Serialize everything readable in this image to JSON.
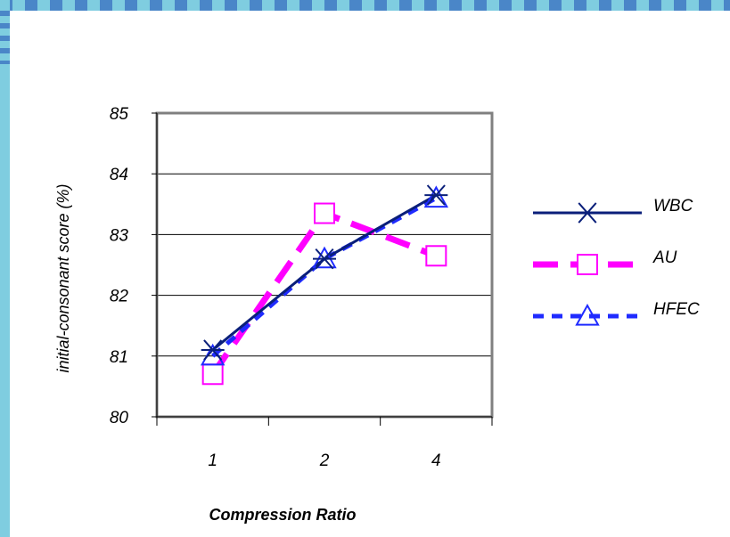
{
  "chart_data": {
    "type": "line",
    "categories": [
      "1",
      "2",
      "4"
    ],
    "series": [
      {
        "name": "WBC",
        "values": [
          81.1,
          82.6,
          83.65
        ],
        "color": "#0a1f7a",
        "marker": "asterisk"
      },
      {
        "name": "AU",
        "values": [
          80.7,
          83.35,
          82.65
        ],
        "color": "#ff00ff",
        "marker": "square"
      },
      {
        "name": "HFEC",
        "values": [
          81.0,
          82.6,
          83.6
        ],
        "color": "#1f2bff",
        "marker": "triangle"
      }
    ],
    "title": "",
    "xlabel": "Compression Ratio",
    "ylabel": "initial-consonant score (%)",
    "ylim": [
      80,
      85
    ],
    "yticks": [
      "80",
      "81",
      "82",
      "83",
      "84",
      "85"
    ],
    "grid": true,
    "legend_position": "right"
  }
}
